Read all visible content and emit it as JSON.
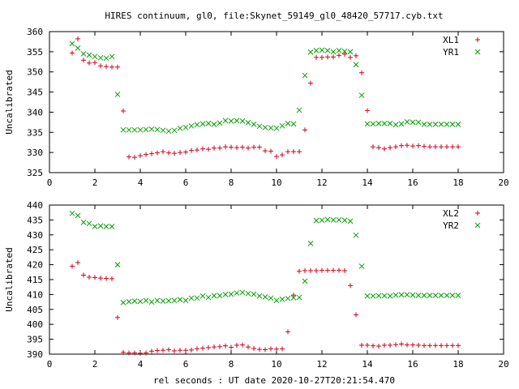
{
  "title": "HIRES continuum, gl0, file:Skynet_59149_gl0_48420_57717.cyb.txt",
  "xlabel": "rel seconds : UT date 2020-10-27T20:21:54.470",
  "chart_data": [
    {
      "type": "scatter",
      "ylabel": "Uncalibrated",
      "xlim": [
        0,
        20
      ],
      "ylim": [
        325,
        360
      ],
      "xticks": [
        0,
        2,
        4,
        6,
        8,
        10,
        12,
        14,
        16,
        18,
        20
      ],
      "yticks": [
        325,
        330,
        335,
        340,
        345,
        350,
        355,
        360
      ],
      "grid": false,
      "legend_position": "top-right",
      "series": [
        {
          "name": "XL1",
          "marker": "plus",
          "color": "#d4001a",
          "x": [
            1.0,
            1.25,
            1.5,
            1.75,
            2.0,
            2.25,
            2.5,
            2.75,
            3.0,
            3.25,
            3.5,
            3.75,
            4.0,
            4.25,
            4.5,
            4.75,
            5.0,
            5.25,
            5.5,
            5.75,
            6.0,
            6.25,
            6.5,
            6.75,
            7.0,
            7.25,
            7.5,
            7.75,
            8.0,
            8.25,
            8.5,
            8.75,
            9.0,
            9.25,
            9.5,
            9.75,
            10.0,
            10.25,
            10.5,
            10.75,
            11.0,
            11.25,
            11.5,
            11.75,
            12.0,
            12.25,
            12.5,
            12.75,
            13.0,
            13.25,
            13.5,
            13.75,
            14.0,
            14.25,
            14.5,
            14.75,
            15.0,
            15.25,
            15.5,
            15.75,
            16.0,
            16.25,
            16.5,
            16.75,
            17.0,
            17.25,
            17.5,
            17.75,
            18.0
          ],
          "y": [
            354.7,
            358.2,
            352.9,
            352.2,
            352.3,
            351.5,
            351.3,
            351.2,
            351.2,
            340.3,
            328.9,
            328.8,
            329.2,
            329.5,
            329.7,
            329.9,
            330.2,
            329.9,
            329.8,
            330.0,
            330.1,
            330.5,
            330.6,
            330.9,
            330.8,
            331.1,
            331.1,
            331.4,
            331.3,
            331.2,
            331.3,
            331.1,
            331.3,
            331.3,
            330.4,
            330.3,
            329.0,
            329.4,
            330.2,
            330.2,
            330.2,
            335.6,
            347.2,
            353.6,
            353.6,
            353.7,
            353.7,
            354.1,
            354.4,
            353.6,
            354.0,
            349.8,
            340.4,
            331.4,
            331.2,
            330.9,
            331.2,
            331.4,
            331.7,
            331.8,
            331.6,
            331.7,
            331.5,
            331.4,
            331.4,
            331.4,
            331.4,
            331.4,
            331.4
          ]
        },
        {
          "name": "YR1",
          "marker": "cross",
          "color": "#00a000",
          "x": [
            1.0,
            1.25,
            1.5,
            1.75,
            2.0,
            2.25,
            2.5,
            2.75,
            3.0,
            3.25,
            3.5,
            3.75,
            4.0,
            4.25,
            4.5,
            4.75,
            5.0,
            5.25,
            5.5,
            5.75,
            6.0,
            6.25,
            6.5,
            6.75,
            7.0,
            7.25,
            7.5,
            7.75,
            8.0,
            8.25,
            8.5,
            8.75,
            9.0,
            9.25,
            9.5,
            9.75,
            10.0,
            10.25,
            10.5,
            10.75,
            11.0,
            11.25,
            11.5,
            11.75,
            12.0,
            12.25,
            12.5,
            12.75,
            13.0,
            13.25,
            13.5,
            13.75,
            14.0,
            14.25,
            14.5,
            14.75,
            15.0,
            15.25,
            15.5,
            15.75,
            16.0,
            16.25,
            16.5,
            16.75,
            17.0,
            17.25,
            17.5,
            17.75,
            18.0
          ],
          "y": [
            357.0,
            355.9,
            354.5,
            354.2,
            353.8,
            353.5,
            353.4,
            353.8,
            344.4,
            335.6,
            335.6,
            335.6,
            335.6,
            335.7,
            335.8,
            335.7,
            335.5,
            335.3,
            335.5,
            336.0,
            336.2,
            336.6,
            336.9,
            337.1,
            337.2,
            337.0,
            337.3,
            337.9,
            337.8,
            337.9,
            337.8,
            337.4,
            337.0,
            336.5,
            336.2,
            336.1,
            336.0,
            336.6,
            337.2,
            337.1,
            340.5,
            349.1,
            354.9,
            355.3,
            355.4,
            355.3,
            355.0,
            355.3,
            355.1,
            355.0,
            351.8,
            344.2,
            337.1,
            337.1,
            337.2,
            337.2,
            337.2,
            336.9,
            337.1,
            337.6,
            337.5,
            337.5,
            337.0,
            337.0,
            337.0,
            337.0,
            337.0,
            337.0,
            337.0
          ]
        }
      ]
    },
    {
      "type": "scatter",
      "ylabel": "Uncalibrated",
      "xlim": [
        0,
        20
      ],
      "ylim": [
        390,
        440
      ],
      "xticks": [
        0,
        2,
        4,
        6,
        8,
        10,
        12,
        14,
        16,
        18,
        20
      ],
      "yticks": [
        390,
        395,
        400,
        405,
        410,
        415,
        420,
        425,
        430,
        435,
        440
      ],
      "grid": false,
      "legend_position": "top-right",
      "series": [
        {
          "name": "XL2",
          "marker": "plus",
          "color": "#d4001a",
          "x": [
            1.0,
            1.25,
            1.5,
            1.75,
            2.0,
            2.25,
            2.5,
            2.75,
            3.0,
            3.25,
            3.5,
            3.75,
            4.0,
            4.25,
            4.5,
            4.75,
            5.0,
            5.25,
            5.5,
            5.75,
            6.0,
            6.25,
            6.5,
            6.75,
            7.0,
            7.25,
            7.5,
            7.75,
            8.0,
            8.25,
            8.5,
            8.75,
            9.0,
            9.25,
            9.5,
            9.75,
            10.0,
            10.25,
            10.5,
            10.75,
            11.0,
            11.25,
            11.5,
            11.75,
            12.0,
            12.25,
            12.5,
            12.75,
            13.0,
            13.25,
            13.5,
            13.75,
            14.0,
            14.25,
            14.5,
            14.75,
            15.0,
            15.25,
            15.5,
            15.75,
            16.0,
            16.25,
            16.5,
            16.75,
            17.0,
            17.25,
            17.5,
            17.75,
            18.0
          ],
          "y": [
            419.5,
            420.7,
            416.5,
            415.8,
            415.7,
            415.5,
            415.4,
            415.3,
            402.3,
            390.6,
            390.4,
            390.4,
            390.3,
            390.4,
            391.0,
            391.2,
            391.3,
            391.5,
            391.1,
            391.3,
            391.3,
            391.4,
            391.8,
            392.0,
            392.2,
            392.4,
            392.5,
            392.8,
            392.3,
            393.0,
            393.1,
            392.4,
            391.9,
            391.6,
            391.5,
            391.8,
            391.7,
            391.8,
            397.5,
            409.8,
            417.8,
            418.0,
            418.0,
            418.0,
            418.1,
            418.1,
            418.1,
            418.1,
            418.0,
            413.0,
            403.2,
            393.0,
            393.0,
            392.8,
            392.7,
            393.0,
            393.0,
            393.2,
            393.4,
            393.1,
            393.1,
            393.0,
            392.9,
            392.9,
            392.9,
            392.9,
            392.9,
            392.9,
            392.9
          ]
        },
        {
          "name": "YR2",
          "marker": "cross",
          "color": "#00a000",
          "x": [
            1.0,
            1.25,
            1.5,
            1.75,
            2.0,
            2.25,
            2.5,
            2.75,
            3.0,
            3.25,
            3.5,
            3.75,
            4.0,
            4.25,
            4.5,
            4.75,
            5.0,
            5.25,
            5.5,
            5.75,
            6.0,
            6.25,
            6.5,
            6.75,
            7.0,
            7.25,
            7.5,
            7.75,
            8.0,
            8.25,
            8.5,
            8.75,
            9.0,
            9.25,
            9.5,
            9.75,
            10.0,
            10.25,
            10.5,
            10.75,
            11.0,
            11.25,
            11.5,
            11.75,
            12.0,
            12.25,
            12.5,
            12.75,
            13.0,
            13.25,
            13.5,
            13.75,
            14.0,
            14.25,
            14.5,
            14.75,
            15.0,
            15.25,
            15.5,
            15.75,
            16.0,
            16.25,
            16.5,
            16.75,
            17.0,
            17.25,
            17.5,
            17.75,
            18.0
          ],
          "y": [
            437.2,
            436.5,
            434.2,
            433.8,
            432.8,
            433.0,
            432.8,
            432.8,
            420.0,
            407.3,
            407.6,
            407.8,
            407.7,
            408.0,
            407.5,
            408.0,
            407.8,
            407.9,
            408.0,
            408.3,
            408.0,
            408.8,
            408.8,
            409.5,
            409.0,
            409.6,
            409.6,
            410.0,
            410.1,
            410.5,
            410.7,
            410.3,
            410.1,
            409.5,
            409.2,
            408.8,
            408.0,
            408.4,
            408.7,
            408.9,
            409.0,
            414.5,
            427.1,
            434.8,
            434.9,
            435.1,
            435.0,
            435.0,
            434.9,
            434.6,
            429.9,
            419.5,
            409.5,
            409.5,
            409.6,
            409.6,
            409.5,
            409.8,
            409.9,
            409.9,
            409.8,
            409.7,
            409.7,
            409.7,
            409.7,
            409.7,
            409.7,
            409.7,
            409.7
          ]
        }
      ]
    }
  ]
}
